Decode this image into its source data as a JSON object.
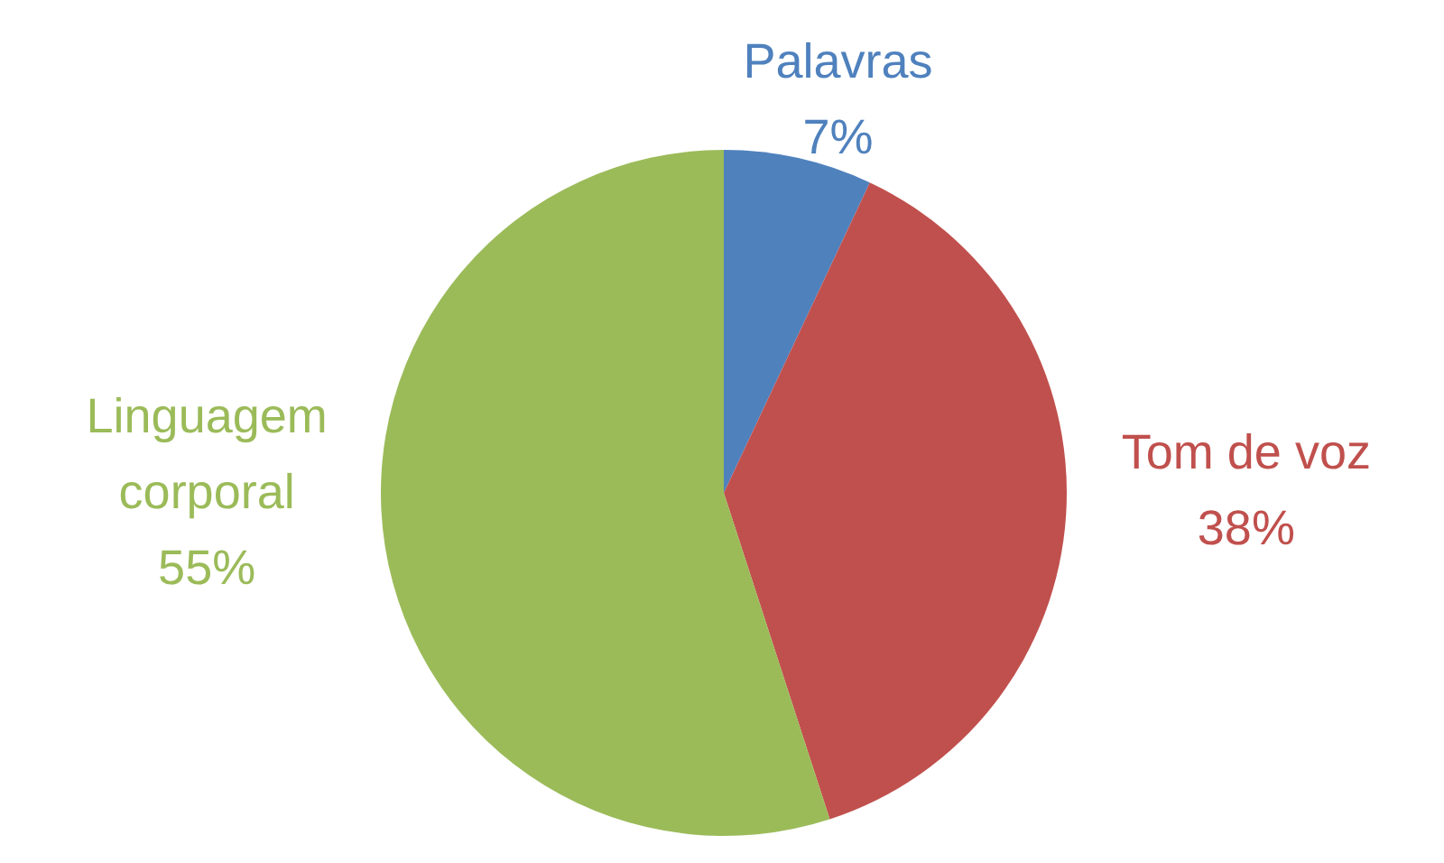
{
  "chart_data": {
    "type": "pie",
    "categories": [
      "Palavras",
      "Tom de voz",
      "Linguagem corporal"
    ],
    "values": [
      7,
      38,
      55
    ],
    "colors": [
      "#4f81bd",
      "#c0504d",
      "#9bbb59"
    ],
    "value_labels": [
      "7%",
      "38%",
      "55%"
    ]
  }
}
